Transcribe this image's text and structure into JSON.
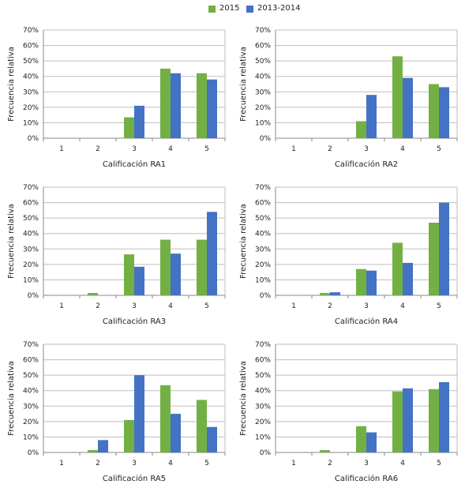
{
  "legend": {
    "series": [
      {
        "name": "2015",
        "color": "#72b043"
      },
      {
        "name": "2013-2014",
        "color": "#4472c4"
      }
    ]
  },
  "chart_data": [
    {
      "type": "bar",
      "xlabel": "Calificación RA1",
      "ylabel": "Frecuencia relativa",
      "categories": [
        "1",
        "2",
        "3",
        "4",
        "5"
      ],
      "ylim": [
        0,
        70
      ],
      "yticks": [
        "0%",
        "10%",
        "20%",
        "30%",
        "40%",
        "50%",
        "60%",
        "70%"
      ],
      "grid": true,
      "series": [
        {
          "name": "2015",
          "values": [
            0,
            0,
            13.5,
            45,
            42
          ]
        },
        {
          "name": "2013-2014",
          "values": [
            0,
            0,
            21,
            42,
            38
          ]
        }
      ]
    },
    {
      "type": "bar",
      "xlabel": "Calificación RA2",
      "ylabel": "Frecuencia relativa",
      "categories": [
        "1",
        "2",
        "3",
        "4",
        "5"
      ],
      "ylim": [
        0,
        70
      ],
      "yticks": [
        "0%",
        "10%",
        "20%",
        "30%",
        "40%",
        "50%",
        "60%",
        "70%"
      ],
      "grid": true,
      "series": [
        {
          "name": "2015",
          "values": [
            0,
            0,
            11,
            53,
            35
          ]
        },
        {
          "name": "2013-2014",
          "values": [
            0,
            0,
            28,
            39,
            33
          ]
        }
      ]
    },
    {
      "type": "bar",
      "xlabel": "Calificación RA3",
      "ylabel": "Frecuencia relativa",
      "categories": [
        "1",
        "2",
        "3",
        "4",
        "5"
      ],
      "ylim": [
        0,
        70
      ],
      "yticks": [
        "0%",
        "10%",
        "20%",
        "30%",
        "40%",
        "50%",
        "60%",
        "70%"
      ],
      "grid": true,
      "series": [
        {
          "name": "2015",
          "values": [
            0,
            1.5,
            26.5,
            36,
            36
          ]
        },
        {
          "name": "2013-2014",
          "values": [
            0,
            0,
            18.5,
            27,
            54
          ]
        }
      ]
    },
    {
      "type": "bar",
      "xlabel": "Calificación RA4",
      "ylabel": "Frecuencia relativa",
      "categories": [
        "1",
        "2",
        "3",
        "4",
        "5"
      ],
      "ylim": [
        0,
        70
      ],
      "yticks": [
        "0%",
        "10%",
        "20%",
        "30%",
        "40%",
        "50%",
        "60%",
        "70%"
      ],
      "grid": true,
      "series": [
        {
          "name": "2015",
          "values": [
            0,
            1.5,
            17,
            34,
            47
          ]
        },
        {
          "name": "2013-2014",
          "values": [
            0,
            2,
            16,
            21,
            60
          ]
        }
      ]
    },
    {
      "type": "bar",
      "xlabel": "Calificación RA5",
      "ylabel": "Frecuencia relativa",
      "categories": [
        "1",
        "2",
        "3",
        "4",
        "5"
      ],
      "ylim": [
        0,
        70
      ],
      "yticks": [
        "0%",
        "10%",
        "20%",
        "30%",
        "40%",
        "50%",
        "60%",
        "70%"
      ],
      "grid": true,
      "series": [
        {
          "name": "2015",
          "values": [
            0,
            1.5,
            21,
            43.5,
            34
          ]
        },
        {
          "name": "2013-2014",
          "values": [
            0,
            8,
            50,
            25,
            16.5
          ]
        }
      ]
    },
    {
      "type": "bar",
      "xlabel": "Calificación RA6",
      "ylabel": "Frecuencia relativa",
      "categories": [
        "1",
        "2",
        "3",
        "4",
        "5"
      ],
      "ylim": [
        0,
        70
      ],
      "yticks": [
        "0%",
        "10%",
        "20%",
        "30%",
        "40%",
        "50%",
        "60%",
        "70%"
      ],
      "grid": true,
      "series": [
        {
          "name": "2015",
          "values": [
            0,
            1.5,
            17,
            39.5,
            41
          ]
        },
        {
          "name": "2013-2014",
          "values": [
            0,
            0,
            13,
            41.5,
            45.5
          ]
        }
      ]
    }
  ]
}
